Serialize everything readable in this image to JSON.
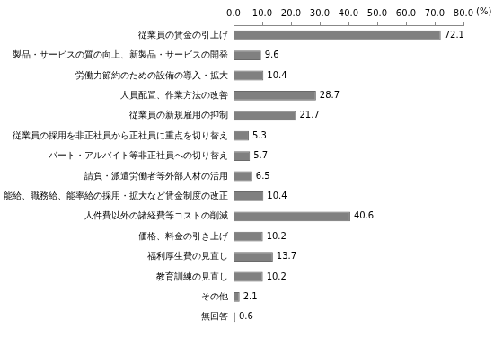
{
  "chart_data": {
    "type": "bar",
    "orientation": "horizontal",
    "xlabel": "(%)",
    "categories": [
      "従業員の賃金の引上げ",
      "製品・サービスの質の向上、新製品・サービスの開発",
      "労働力節約のための設備の導入・拡大",
      "人員配置、作業方法の改善",
      "従業員の新規雇用の抑制",
      "従業員の採用を非正社員から正社員に重点を切り替え",
      "パート・アルバイト等非正社員への切り替え",
      "請負・派遣労働者等外部人材の活用",
      "職能給、職務給、能率給の採用・拡大など賃金制度の改正",
      "人件費以外の諸経費等コストの削減",
      "価格、料金の引き上げ",
      "福利厚生費の見直し",
      "教育訓練の見直し",
      "その他",
      "無回答"
    ],
    "values": [
      72.1,
      9.6,
      10.4,
      28.7,
      21.7,
      5.3,
      5.7,
      6.5,
      10.4,
      40.6,
      10.2,
      13.7,
      10.2,
      2.1,
      0.6
    ],
    "color": "#808080",
    "xlim": [
      0,
      80
    ],
    "xticks": [
      {
        "value": 0,
        "label": "0.0"
      },
      {
        "value": 10,
        "label": "10.0"
      },
      {
        "value": 20,
        "label": "20.0"
      },
      {
        "value": 30,
        "label": "30.0"
      },
      {
        "value": 40,
        "label": "40.0"
      },
      {
        "value": 50,
        "label": "50.0"
      },
      {
        "value": 60,
        "label": "60.0"
      },
      {
        "value": 70,
        "label": "70.0"
      },
      {
        "value": 80,
        "label": "80.0"
      }
    ],
    "grid": false,
    "data_labels": true
  }
}
